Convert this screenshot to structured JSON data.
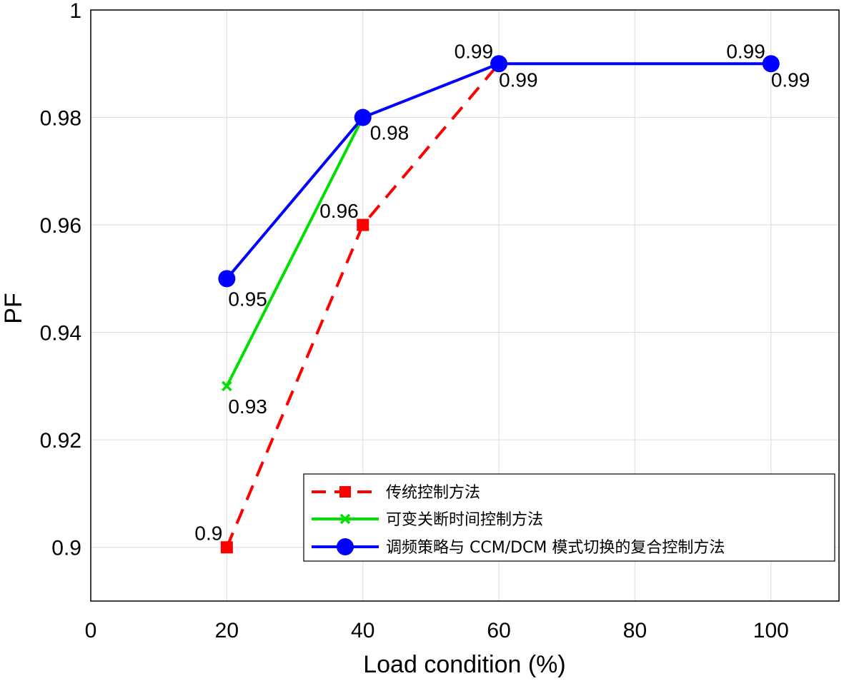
{
  "chart_data": {
    "type": "line",
    "xlabel": "Load condition (%)",
    "ylabel": "PF",
    "xlim": [
      0,
      110
    ],
    "ylim": [
      0.89,
      1.0
    ],
    "x_ticks": [
      "0",
      "20",
      "40",
      "60",
      "80",
      "100"
    ],
    "y_ticks": [
      "0.9",
      "0.92",
      "0.94",
      "0.96",
      "0.98",
      "1"
    ],
    "grid": true,
    "legend_position": "bottom-right",
    "series": [
      {
        "name": "传统控制方法",
        "color": "#ff0000",
        "line_style": "dashed",
        "marker": "square",
        "x": [
          20,
          40,
          60
        ],
        "values": [
          0.9,
          0.96,
          0.99
        ],
        "labels": [
          "0.9",
          "0.96",
          ""
        ]
      },
      {
        "name": "可变关断时间控制方法",
        "color": "#00e000",
        "line_style": "solid",
        "marker": "x",
        "x": [
          20,
          40
        ],
        "values": [
          0.93,
          0.98
        ],
        "labels": [
          "0.93",
          ""
        ]
      },
      {
        "name": "调频策略与 CCM/DCM 模式切换的复合控制方法",
        "color": "#0000ff",
        "line_style": "solid",
        "marker": "circle",
        "x": [
          20,
          40,
          60,
          100
        ],
        "values": [
          0.95,
          0.98,
          0.99,
          0.99
        ],
        "labels": [
          "0.95",
          "0.98",
          "0.99",
          "0.99"
        ]
      }
    ],
    "annotations": [
      {
        "text": "0.99",
        "x": 60,
        "y": 0.99,
        "anchor": "above-left"
      },
      {
        "text": "0.99",
        "x": 100,
        "y": 0.99,
        "anchor": "above-left"
      }
    ]
  }
}
